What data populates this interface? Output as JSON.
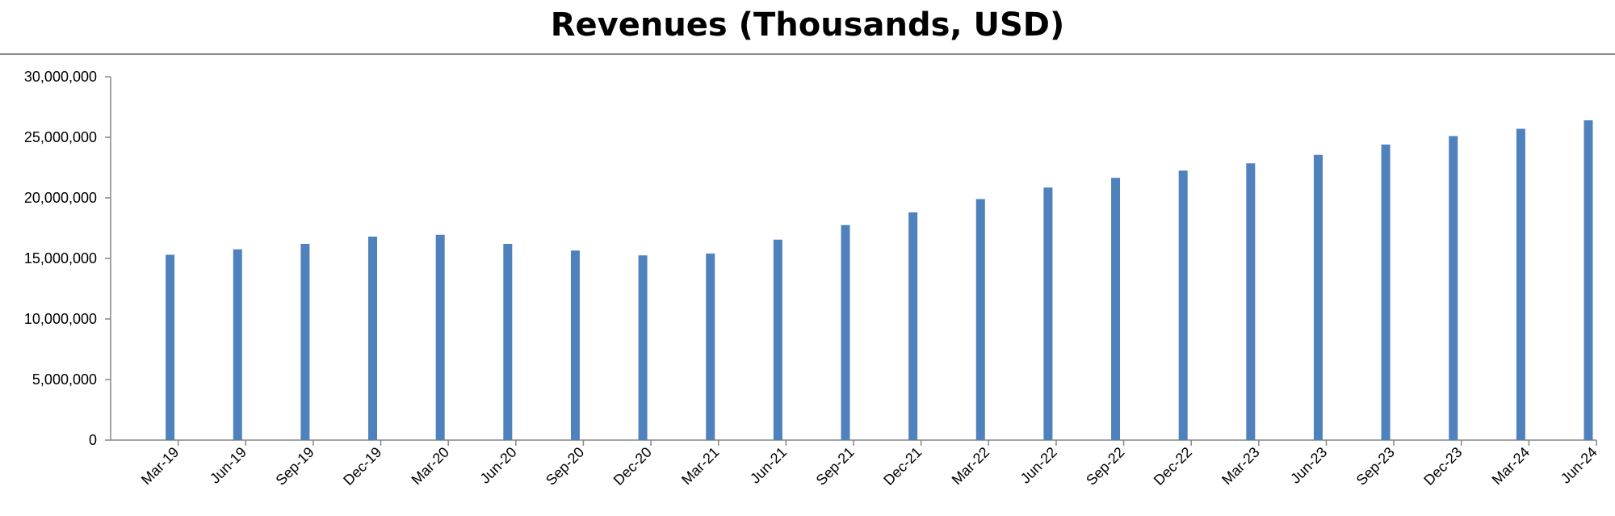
{
  "chart_data": {
    "type": "bar",
    "title": "Revenues (Thousands, USD)",
    "xlabel": "",
    "ylabel": "",
    "ylim": [
      0,
      30000000
    ],
    "yticks": [
      0,
      5000000,
      10000000,
      15000000,
      20000000,
      25000000,
      30000000
    ],
    "ytick_labels": [
      "0",
      "5,000,000",
      "10,000,000",
      "15,000,000",
      "20,000,000",
      "25,000,000",
      "30,000,000"
    ],
    "grid": false,
    "legend": "none",
    "bar_color": "#4f81bd",
    "categories": [
      "Mar-19",
      "Jun-19",
      "Sep-19",
      "Dec-19",
      "Mar-20",
      "Jun-20",
      "Sep-20",
      "Dec-20",
      "Mar-21",
      "Jun-21",
      "Sep-21",
      "Dec-21",
      "Mar-22",
      "Jun-22",
      "Sep-22",
      "Dec-22",
      "Mar-23",
      "Jun-23",
      "Sep-23",
      "Dec-23",
      "Mar-24",
      "Jun-24"
    ],
    "values": [
      15300000,
      15750000,
      16200000,
      16800000,
      16950000,
      16200000,
      15650000,
      15250000,
      15400000,
      16550000,
      17750000,
      18800000,
      19900000,
      20850000,
      21650000,
      22250000,
      22850000,
      23550000,
      24400000,
      25100000,
      25700000,
      26400000
    ]
  }
}
